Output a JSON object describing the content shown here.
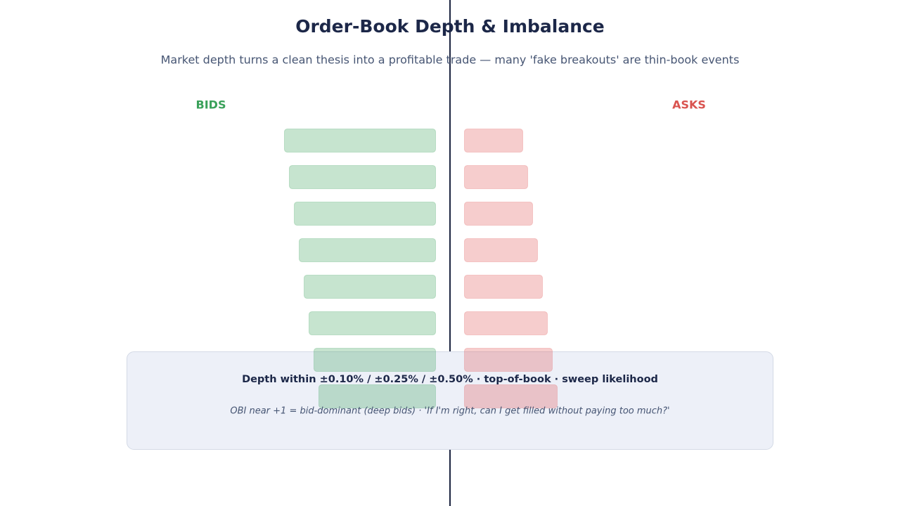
{
  "header": {
    "title": "Order-Book Depth & Imbalance",
    "subtitle": "Market depth turns a clean thesis into a profitable trade — many 'fake breakouts' are thin-book events"
  },
  "sides": {
    "bids": "BIDS",
    "asks": "ASKS"
  },
  "note": {
    "title": "Depth within ±0.10% / ±0.25% / ±0.50% · top-of-book · sweep likelihood",
    "text": "OBI near +1 = bid-dominant (deep bids) · 'If I'm right, can I get filled without paying too much?'"
  }
}
